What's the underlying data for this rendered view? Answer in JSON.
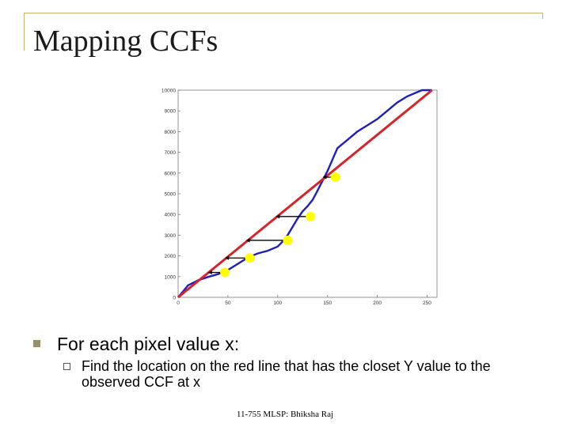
{
  "slide": {
    "title": "Mapping CCFs",
    "bullet": "For each pixel value x:",
    "sub_bullet": "Find the location on the red line that has the closet Y value to the observed CCF at x",
    "footer": "11-755 MLSP: Bhiksha Raj"
  },
  "colors": {
    "frame": "#c9b36a",
    "title": "#1a1a1a",
    "bullet": "#958f6b",
    "ccf_curve": "#1f1fbf",
    "red_line": "#d8232a",
    "markers": "#ffff00",
    "arrows": "#000000"
  },
  "chart_data": {
    "type": "line",
    "title": "",
    "xlabel": "",
    "ylabel": "",
    "xlim": [
      0,
      260
    ],
    "ylim": [
      0,
      10000
    ],
    "grid": false,
    "x_ticks": [
      "0",
      "50",
      "100",
      "150",
      "200",
      "250"
    ],
    "y_ticks": [
      "0",
      "1000",
      "2000",
      "3000",
      "4000",
      "5000",
      "6000",
      "7000",
      "8000",
      "9000",
      "10000"
    ],
    "series": [
      {
        "kind": "ccf-curve",
        "color": "#1f1fbf",
        "x": [
          0,
          10,
          20,
          30,
          40,
          50,
          60,
          70,
          80,
          90,
          100,
          105,
          110,
          115,
          120,
          125,
          130,
          135,
          140,
          150,
          160,
          170,
          180,
          190,
          200,
          210,
          220,
          230,
          240,
          245,
          250,
          255
        ],
        "y": [
          0,
          580,
          820,
          980,
          1120,
          1320,
          1620,
          1920,
          2120,
          2250,
          2450,
          2700,
          3000,
          3400,
          3800,
          4150,
          4400,
          4700,
          5150,
          6100,
          7200,
          7600,
          8000,
          8300,
          8600,
          9000,
          9400,
          9700,
          9900,
          10000,
          10200,
          10400
        ]
      },
      {
        "kind": "red-line",
        "color": "#d8232a",
        "x": [
          0,
          255
        ],
        "y": [
          0,
          10000
        ]
      }
    ],
    "mapping_points": [
      {
        "x": 47,
        "y": 1200,
        "target_x": 30
      },
      {
        "x": 72,
        "y": 1900,
        "target_x": 47
      },
      {
        "x": 110,
        "y": 2750,
        "target_x": 68
      },
      {
        "x": 133,
        "y": 3900,
        "target_x": 98
      },
      {
        "x": 158,
        "y": 5800,
        "target_x": 145
      }
    ]
  }
}
